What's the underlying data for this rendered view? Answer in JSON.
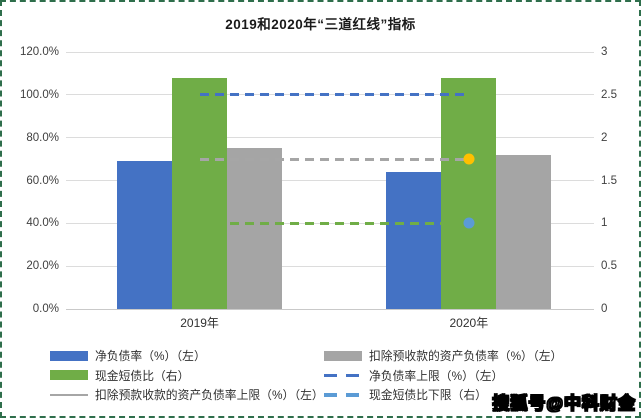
{
  "header": {
    "title": "2019和2020年“三道红线”指标"
  },
  "watermark": {
    "text": "搜狐号@中科财金"
  },
  "colors": {
    "bar_blue": "#4472C4",
    "bar_green": "#70AD47",
    "bar_gray": "#A5A5A5",
    "line_blue": "#4472C4",
    "line_gray": "#A6A6A6",
    "line_green": "#70AD47",
    "marker_orange": "#FFC000",
    "marker_lightblue": "#5B9BD5",
    "gridline": "#DCDCDC",
    "border_green": "#2E6E4B"
  },
  "chart_data": {
    "type": "bar",
    "title": "2019和2020年“三道红线”指标",
    "categories": [
      "2019年",
      "2020年"
    ],
    "left_axis": {
      "ticks": [
        "120.0%",
        "100.0%",
        "80.0%",
        "60.0%",
        "40.0%",
        "20.0%",
        "0.0%"
      ],
      "min": 0,
      "max": 120,
      "grid": true
    },
    "right_axis": {
      "ticks": [
        "3",
        "2.5",
        "2",
        "1.5",
        "1",
        "0.5",
        "0"
      ],
      "min": 0,
      "max": 3
    },
    "series": [
      {
        "name": "净负债率（%）（左）",
        "kind": "bar",
        "axis": "left",
        "color": "#4472C4",
        "values": [
          69,
          64
        ]
      },
      {
        "name": "现金短债比（右）",
        "kind": "bar",
        "axis": "right",
        "color": "#70AD47",
        "values": [
          2.7,
          2.7
        ]
      },
      {
        "name": "扣除预收款的资产负债率（%）（左）",
        "kind": "bar",
        "axis": "left",
        "color": "#A5A5A5",
        "values": [
          75,
          72
        ]
      },
      {
        "name": "净负债率上限（%）（左）",
        "kind": "dashed-line",
        "axis": "left",
        "color": "#4472C4",
        "values": [
          100,
          100
        ],
        "end_marker_color": null
      },
      {
        "name": "扣除预款收款的资产负债率上限（%）（左）",
        "kind": "dashed-line",
        "axis": "left",
        "color": "#A6A6A6",
        "values": [
          70,
          70
        ],
        "end_marker_color": "#FFC000"
      },
      {
        "name": "现金短债比下限（右）",
        "kind": "dashed-line",
        "axis": "right",
        "color": "#70AD47",
        "values": [
          1,
          1
        ],
        "end_marker_color": "#5B9BD5"
      }
    ],
    "legend_position": "bottom-two-columns",
    "legend_columns": [
      [
        {
          "swatch": "bar",
          "color": "#4472C4",
          "label": "净负债率（%）（左）"
        },
        {
          "swatch": "bar",
          "color": "#70AD47",
          "label": "现金短债比（右）"
        },
        {
          "swatch": "line",
          "color": "#A6A6A6",
          "label": "扣除预款收款的资产负债率上限（%）（左）"
        }
      ],
      [
        {
          "swatch": "bar",
          "color": "#A5A5A5",
          "label": "扣除预收款的资产负债率（%）（左）"
        },
        {
          "swatch": "dash",
          "color": "#4472C4",
          "label": "净负债率上限（%）（左）"
        },
        {
          "swatch": "dash",
          "color": "#5B9BD5",
          "label": "现金短债比下限（右）"
        }
      ]
    ]
  }
}
